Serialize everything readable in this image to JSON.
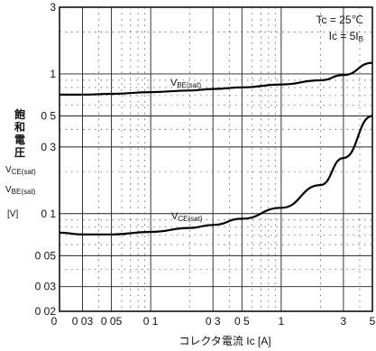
{
  "chart_data": {
    "type": "line",
    "x_scale": "log",
    "y_scale": "log",
    "xlim": [
      0.02,
      5
    ],
    "ylim": [
      0.02,
      3
    ],
    "x_ticks": [
      {
        "v": 0.03,
        "label": "0 03"
      },
      {
        "v": 0.05,
        "label": "0 05"
      },
      {
        "v": 0.1,
        "label": "0 1"
      },
      {
        "v": 0.3,
        "label": "0 3"
      },
      {
        "v": 0.5,
        "label": "0 5"
      },
      {
        "v": 1,
        "label": "1"
      },
      {
        "v": 3,
        "label": "3"
      },
      {
        "v": 5,
        "label": "5"
      }
    ],
    "x_origin_label": "0",
    "y_ticks": [
      {
        "v": 3,
        "label": "3"
      },
      {
        "v": 1,
        "label": "1"
      },
      {
        "v": 0.5,
        "label": "0 5"
      },
      {
        "v": 0.3,
        "label": "0 3"
      },
      {
        "v": 0.1,
        "label": "0 1"
      },
      {
        "v": 0.05,
        "label": "0 05"
      },
      {
        "v": 0.03,
        "label": "0 03"
      },
      {
        "v": 0.02,
        "label": "0 02"
      }
    ],
    "xlabel": "コレクタ電流 Ic [A]",
    "ylabel_lines": [
      "飽",
      "和",
      "電",
      "圧"
    ],
    "ylabel_symbols": [
      "V<sub>CE(sat)</sub>",
      "V<sub>BE(sat)</sub>"
    ],
    "ylabel_unit": "[V]",
    "conditions": [
      "Tc = 25℃",
      "Ic = 5I<sub>B</sub>"
    ],
    "series": [
      {
        "name": "VBE(sat)",
        "x": [
          0.02,
          0.03,
          0.05,
          0.1,
          0.2,
          0.3,
          0.5,
          1,
          2,
          3,
          5
        ],
        "y": [
          0.71,
          0.71,
          0.72,
          0.74,
          0.76,
          0.78,
          0.8,
          0.84,
          0.9,
          0.98,
          1.2
        ]
      },
      {
        "name": "VCE(sat)",
        "x": [
          0.02,
          0.03,
          0.05,
          0.1,
          0.2,
          0.3,
          0.5,
          1,
          2,
          3,
          5
        ],
        "y": [
          0.073,
          0.071,
          0.071,
          0.074,
          0.079,
          0.083,
          0.092,
          0.11,
          0.16,
          0.25,
          0.5
        ]
      }
    ],
    "grid": true
  },
  "curve_labels": {
    "vbe": "V<sub>BE(sat)</sub>",
    "vce": "V<sub>CE(sat)</sub>"
  }
}
